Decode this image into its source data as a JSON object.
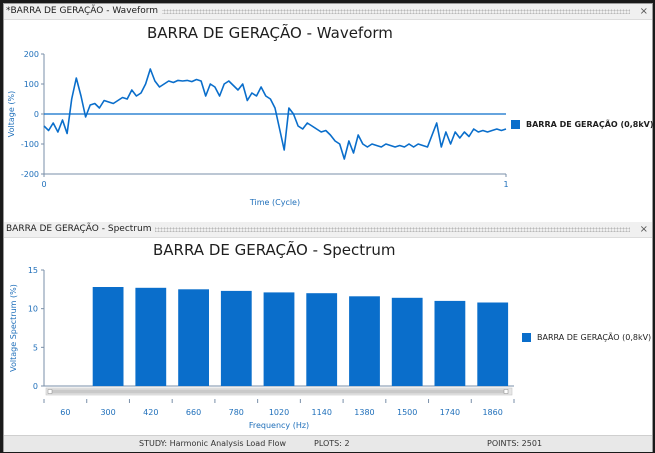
{
  "waveform_panel": {
    "tab_title": "*BARRA DE GERAÇÃO - Waveform",
    "close_glyph": "×",
    "title": "BARRA DE GERAÇÃO - Waveform",
    "legend": "BARRA DE GERAÇÃO (0,8kV)"
  },
  "spectrum_panel": {
    "tab_title": "BARRA DE GERAÇÃO - Spectrum",
    "close_glyph": "×",
    "title": "BARRA DE GERAÇÃO - Spectrum",
    "legend": "BARRA DE GERAÇÃO (0,8kV)"
  },
  "status_bar": {
    "study": "STUDY: Harmonic Analysis Load Flow",
    "plots": "PLOTS: 2",
    "points": "POINTS: 2501"
  },
  "colors": {
    "series": "#0a6ecb",
    "axis_text": "#1f6fba"
  },
  "chart_data": [
    {
      "type": "line",
      "title": "BARRA DE GERAÇÃO - Waveform",
      "xlabel": "Time (Cycle)",
      "ylabel": "Voltage (%)",
      "xlim": [
        0,
        1
      ],
      "ylim": [
        -200,
        200
      ],
      "x_ticks": [
        0,
        1
      ],
      "y_ticks": [
        200,
        100,
        0,
        -100,
        -200
      ],
      "grid": false,
      "legend_position": "right",
      "series": [
        {
          "name": "BARRA DE GERAÇÃO (0,8kV)",
          "x": [
            0,
            0.01,
            0.02,
            0.03,
            0.04,
            0.05,
            0.06,
            0.07,
            0.08,
            0.09,
            0.1,
            0.11,
            0.12,
            0.13,
            0.14,
            0.15,
            0.16,
            0.17,
            0.18,
            0.19,
            0.2,
            0.21,
            0.22,
            0.23,
            0.24,
            0.25,
            0.26,
            0.27,
            0.28,
            0.29,
            0.3,
            0.31,
            0.32,
            0.33,
            0.34,
            0.35,
            0.36,
            0.37,
            0.38,
            0.39,
            0.4,
            0.41,
            0.42,
            0.43,
            0.44,
            0.45,
            0.46,
            0.47,
            0.48,
            0.49,
            0.5,
            0.51,
            0.52,
            0.53,
            0.54,
            0.55,
            0.56,
            0.57,
            0.58,
            0.59,
            0.6,
            0.61,
            0.62,
            0.63,
            0.64,
            0.65,
            0.66,
            0.67,
            0.68,
            0.69,
            0.7,
            0.71,
            0.72,
            0.73,
            0.74,
            0.75,
            0.76,
            0.77,
            0.78,
            0.79,
            0.8,
            0.81,
            0.82,
            0.83,
            0.84,
            0.85,
            0.86,
            0.87,
            0.88,
            0.89,
            0.9,
            0.91,
            0.92,
            0.93,
            0.94,
            0.95,
            0.96,
            0.97,
            0.98,
            0.99,
            1
          ],
          "y": [
            -40,
            -55,
            -30,
            -60,
            -20,
            -65,
            50,
            120,
            60,
            -10,
            30,
            35,
            20,
            45,
            40,
            35,
            45,
            55,
            50,
            80,
            60,
            70,
            100,
            150,
            110,
            90,
            100,
            110,
            105,
            112,
            110,
            112,
            108,
            115,
            110,
            60,
            100,
            90,
            60,
            100,
            110,
            95,
            80,
            100,
            45,
            70,
            60,
            90,
            60,
            50,
            20,
            -50,
            -120,
            20,
            0,
            -40,
            -50,
            -30,
            -40,
            -50,
            -60,
            -55,
            -70,
            -90,
            -100,
            -150,
            -90,
            -130,
            -70,
            -100,
            -110,
            -100,
            -105,
            -110,
            -100,
            -105,
            -110,
            -105,
            -110,
            -100,
            -110,
            -100,
            -105,
            -110,
            -70,
            -30,
            -110,
            -60,
            -100,
            -60,
            -80,
            -60,
            -75,
            -50,
            -60,
            -55,
            -60,
            -55,
            -50,
            -55,
            -50
          ]
        }
      ]
    },
    {
      "type": "bar",
      "title": "BARRA DE GERAÇÃO - Spectrum",
      "xlabel": "Frequency (Hz)",
      "ylabel": "Voltage Spectrum (%)",
      "categories": [
        "60",
        "300",
        "420",
        "660",
        "780",
        "1020",
        "1140",
        "1380",
        "1500",
        "1740",
        "1860"
      ],
      "ylim": [
        0,
        15
      ],
      "y_ticks": [
        15,
        10,
        5,
        0
      ],
      "grid": false,
      "legend_position": "right",
      "series": [
        {
          "name": "BARRA DE GERAÇÃO (0,8kV)",
          "values": [
            null,
            12.8,
            12.7,
            12.5,
            12.3,
            12.1,
            12.0,
            11.6,
            11.4,
            11.0,
            10.8
          ]
        }
      ]
    }
  ]
}
